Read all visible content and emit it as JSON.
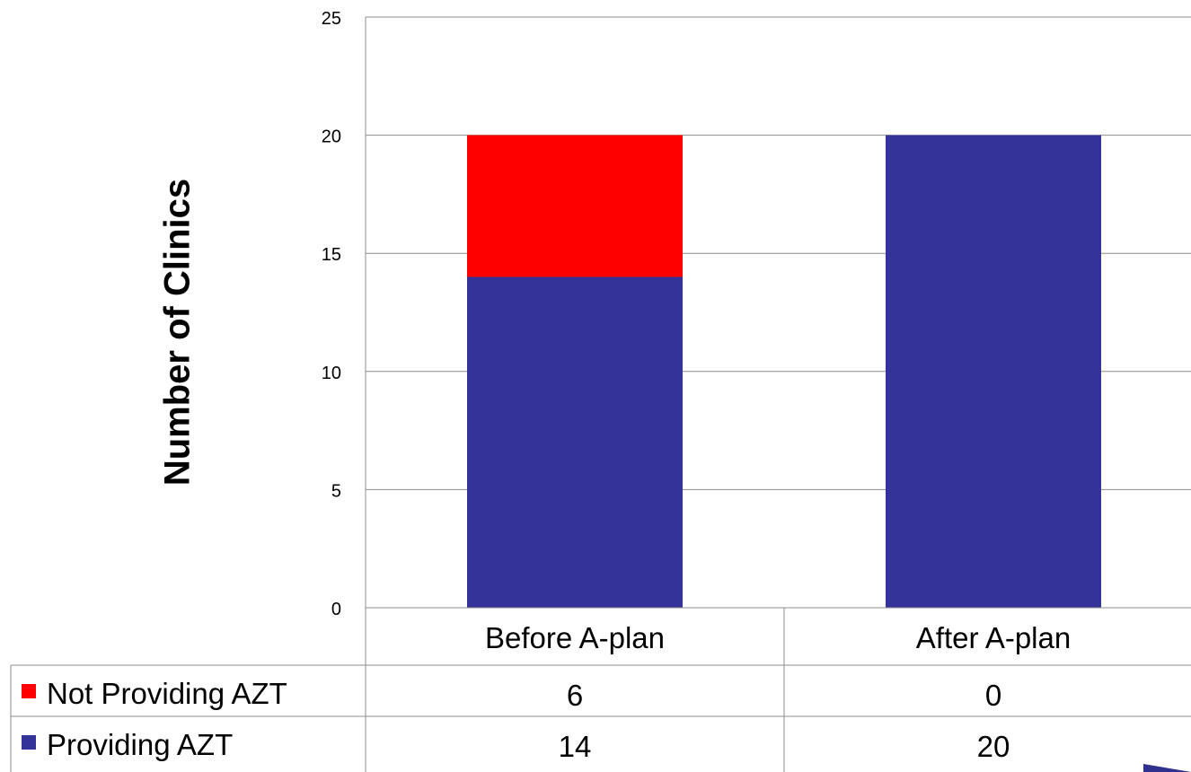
{
  "chart_data": {
    "type": "bar",
    "stacked": true,
    "categories": [
      "Before A-plan",
      "After A-plan"
    ],
    "series": [
      {
        "name": "Not Providing AZT",
        "color": "#ff0000",
        "values": [
          6,
          0
        ]
      },
      {
        "name": "Providing AZT",
        "color": "#333399",
        "values": [
          14,
          20
        ]
      }
    ],
    "ylabel": "Number of Clinics",
    "xlabel": "",
    "ylim": [
      0,
      25
    ],
    "yticks": [
      "0",
      "5",
      "10",
      "15",
      "20",
      "25"
    ],
    "grid": true,
    "legend": "data-table-below"
  }
}
